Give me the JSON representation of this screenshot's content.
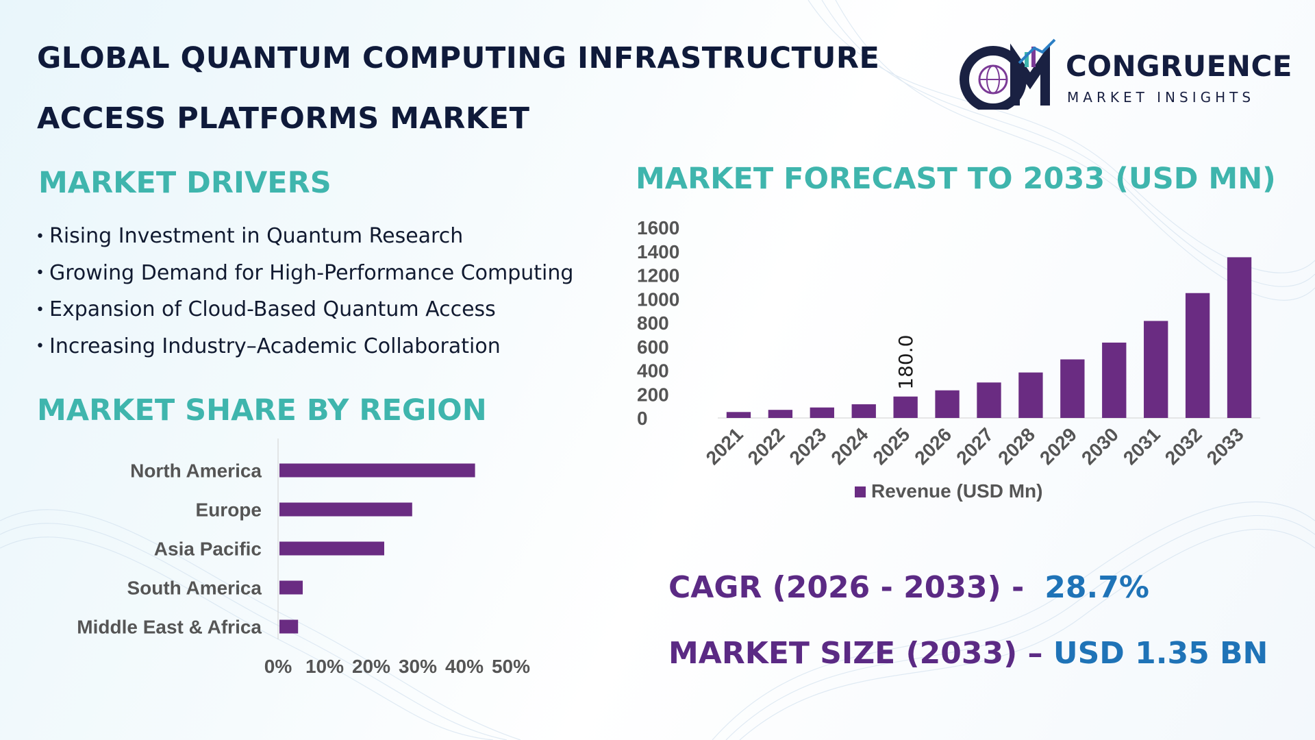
{
  "header": {
    "title_line1": "GLOBAL QUANTUM COMPUTING INFRASTRUCTURE",
    "title_line2": "ACCESS PLATFORMS MARKET"
  },
  "logo": {
    "word": "CONGRUENCE",
    "sub": "MARKET INSIGHTS",
    "icon": "cm-globe-bars-logo"
  },
  "drivers": {
    "heading": "MARKET DRIVERS",
    "items": [
      "Rising Investment in Quantum Research",
      "Growing Demand for High-Performance Computing",
      "Expansion of Cloud-Based Quantum Access",
      "Increasing Industry–Academic Collaboration"
    ]
  },
  "region": {
    "heading": "MARKET SHARE BY REGION"
  },
  "forecast": {
    "heading": "MARKET FORECAST TO 2033 (USD MN)"
  },
  "stats": {
    "cagr_label": "CAGR (2026 - 2033) -",
    "cagr_value": "28.7%",
    "size_label": "MARKET SIZE (2033) –",
    "size_value": "USD 1.35 BN"
  },
  "colors": {
    "bar": "#6a2c82",
    "accent": "#3fb5ad",
    "stat_label": "#5b2a84",
    "stat_value": "#1f73b7"
  },
  "chart_data": [
    {
      "type": "bar",
      "orientation": "vertical",
      "categories": [
        "2021",
        "2022",
        "2023",
        "2024",
        "2025",
        "2026",
        "2027",
        "2028",
        "2029",
        "2030",
        "2031",
        "2032",
        "2033"
      ],
      "series": [
        {
          "name": "Revenue (USD Mn)",
          "values": [
            50,
            68,
            88,
            115,
            180,
            232,
            298,
            382,
            492,
            633,
            815,
            1049,
            1350
          ]
        }
      ],
      "data_labels": [
        {
          "category": "2025",
          "text": "180.0"
        }
      ],
      "yticks": [
        "0",
        "200",
        "400",
        "600",
        "800",
        "1000",
        "1200",
        "1400",
        "1600"
      ],
      "ylim": [
        0,
        1600
      ],
      "legend": "bottom"
    },
    {
      "type": "bar",
      "orientation": "horizontal",
      "categories": [
        "North America",
        "Europe",
        "Asia Pacific",
        "South America",
        "Middle East & Africa"
      ],
      "values": [
        42,
        28.5,
        22.5,
        5,
        4
      ],
      "xticks": [
        "0%",
        "10%",
        "20%",
        "30%",
        "40%",
        "50%"
      ],
      "xlim": [
        0,
        50
      ]
    }
  ]
}
